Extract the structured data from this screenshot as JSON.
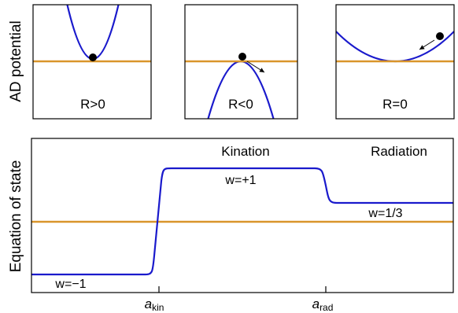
{
  "top_panels": {
    "ylabel": "AD potential",
    "panels": [
      {
        "label": "R>0"
      },
      {
        "label": "R<0"
      },
      {
        "label": "R=0"
      }
    ]
  },
  "bottom_panel": {
    "ylabel": "Equation of state",
    "regions": {
      "kination": "Kination",
      "radiation": "Radiation"
    },
    "state_labels": {
      "w_minus_one": "w=−1",
      "w_plus_one": "w=+1",
      "w_one_third": "w=1/3"
    },
    "ticks": {
      "a_kin": {
        "base": "a",
        "sub": "kin"
      },
      "a_rad": {
        "base": "a",
        "sub": "rad"
      }
    }
  },
  "colors": {
    "curve": "#1a1acc",
    "baseline": "#d9952b",
    "frame": "#000000",
    "ball": "#000000"
  }
}
